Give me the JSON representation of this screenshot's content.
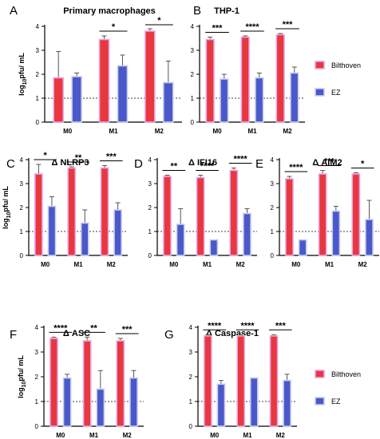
{
  "figure": {
    "ylabel_main": "log",
    "ylabel_sub": "10",
    "ylabel_rest": "pfu/ mL",
    "legend": [
      {
        "name": "Bilthoven",
        "color": "#e8383d",
        "edge": "#e7a6e7"
      },
      {
        "name": "EZ",
        "color": "#4b58c9",
        "edge": "#c7cdf2"
      }
    ]
  },
  "chart_data": [
    {
      "panel": "A",
      "title": "Primary macrophages",
      "type": "bar",
      "categories": [
        "M0",
        "M1",
        "M2"
      ],
      "ylim": [
        0,
        4
      ],
      "yticks": [
        "0",
        "1",
        "2",
        "3",
        "4"
      ],
      "reference_line": 1,
      "series": [
        {
          "name": "Bilthoven",
          "values": [
            1.85,
            3.45,
            3.8
          ],
          "errors": [
            1.1,
            0.15,
            0.1
          ]
        },
        {
          "name": "EZ",
          "values": [
            1.9,
            2.35,
            1.65
          ],
          "errors": [
            0.15,
            0.45,
            0.9
          ]
        }
      ],
      "significance": [
        "",
        "*",
        "*"
      ]
    },
    {
      "panel": "B",
      "title": "THP-1",
      "type": "bar",
      "categories": [
        "M0",
        "M1",
        "M2"
      ],
      "ylim": [
        0,
        4
      ],
      "yticks": [
        "0",
        "1",
        "2",
        "3",
        "4"
      ],
      "reference_line": 1,
      "series": [
        {
          "name": "Bilthoven",
          "values": [
            3.45,
            3.55,
            3.65
          ],
          "errors": [
            0.1,
            0.05,
            0.05
          ]
        },
        {
          "name": "EZ",
          "values": [
            1.8,
            1.85,
            2.05
          ],
          "errors": [
            0.2,
            0.2,
            0.25
          ]
        }
      ],
      "significance": [
        "***",
        "****",
        "***"
      ]
    },
    {
      "panel": "C",
      "title": "Δ NLRP3",
      "type": "bar",
      "categories": [
        "M0",
        "M1",
        "M2"
      ],
      "ylim": [
        0,
        4
      ],
      "yticks": [
        "0",
        "1",
        "2",
        "3",
        "4"
      ],
      "reference_line": 1,
      "series": [
        {
          "name": "Bilthoven",
          "values": [
            3.4,
            3.65,
            3.65
          ],
          "errors": [
            0.4,
            0.05,
            0.1
          ]
        },
        {
          "name": "EZ",
          "values": [
            2.05,
            1.35,
            1.9
          ],
          "errors": [
            0.4,
            0.55,
            0.3
          ]
        }
      ],
      "significance": [
        "*",
        "**",
        "***"
      ]
    },
    {
      "panel": "D",
      "title": "Δ IFI16",
      "type": "bar",
      "categories": [
        "M0",
        "M1",
        "M2"
      ],
      "ylim": [
        0,
        4
      ],
      "yticks": [
        "0",
        "1",
        "2",
        "3",
        "4"
      ],
      "reference_line": 1,
      "series": [
        {
          "name": "Bilthoven",
          "values": [
            3.3,
            3.25,
            3.55
          ],
          "errors": [
            0.05,
            0.1,
            0.1
          ]
        },
        {
          "name": "EZ",
          "values": [
            1.3,
            0.65,
            1.75
          ],
          "errors": [
            0.65,
            0.0,
            0.2
          ]
        }
      ],
      "significance": [
        "**",
        "****",
        "****"
      ]
    },
    {
      "panel": "E",
      "title": "Δ AIM2",
      "type": "bar",
      "categories": [
        "M0",
        "M1",
        "M2"
      ],
      "ylim": [
        0,
        4
      ],
      "yticks": [
        "0",
        "1",
        "2",
        "3",
        "4"
      ],
      "reference_line": 1,
      "series": [
        {
          "name": "Bilthoven",
          "values": [
            3.2,
            3.4,
            3.4
          ],
          "errors": [
            0.1,
            0.15,
            0.05
          ]
        },
        {
          "name": "EZ",
          "values": [
            0.65,
            1.85,
            1.5
          ],
          "errors": [
            0.0,
            0.2,
            0.8
          ]
        }
      ],
      "significance": [
        "****",
        "***",
        "*"
      ]
    },
    {
      "panel": "F",
      "title": "Δ ASC",
      "type": "bar",
      "categories": [
        "M0",
        "M1",
        "M2"
      ],
      "ylim": [
        0,
        4
      ],
      "yticks": [
        "0",
        "1",
        "2",
        "3",
        "4"
      ],
      "reference_line": 1,
      "series": [
        {
          "name": "Bilthoven",
          "values": [
            3.55,
            3.45,
            3.45
          ],
          "errors": [
            0.05,
            0.15,
            0.1
          ]
        },
        {
          "name": "EZ",
          "values": [
            1.95,
            1.5,
            1.95
          ],
          "errors": [
            0.15,
            0.75,
            0.3
          ]
        }
      ],
      "significance": [
        "****",
        "**",
        "***"
      ]
    },
    {
      "panel": "G",
      "title": "Δ Caspase-1",
      "type": "bar",
      "categories": [
        "M0",
        "M1",
        "M2"
      ],
      "ylim": [
        0,
        4
      ],
      "yticks": [
        "0",
        "1",
        "2",
        "3",
        "4"
      ],
      "reference_line": 1,
      "series": [
        {
          "name": "Bilthoven",
          "values": [
            3.65,
            3.65,
            3.65
          ],
          "errors": [
            0.05,
            0.05,
            0.05
          ]
        },
        {
          "name": "EZ",
          "values": [
            1.7,
            1.95,
            1.85
          ],
          "errors": [
            0.15,
            0.0,
            0.25
          ]
        }
      ],
      "significance": [
        "****",
        "****",
        "***"
      ]
    }
  ]
}
